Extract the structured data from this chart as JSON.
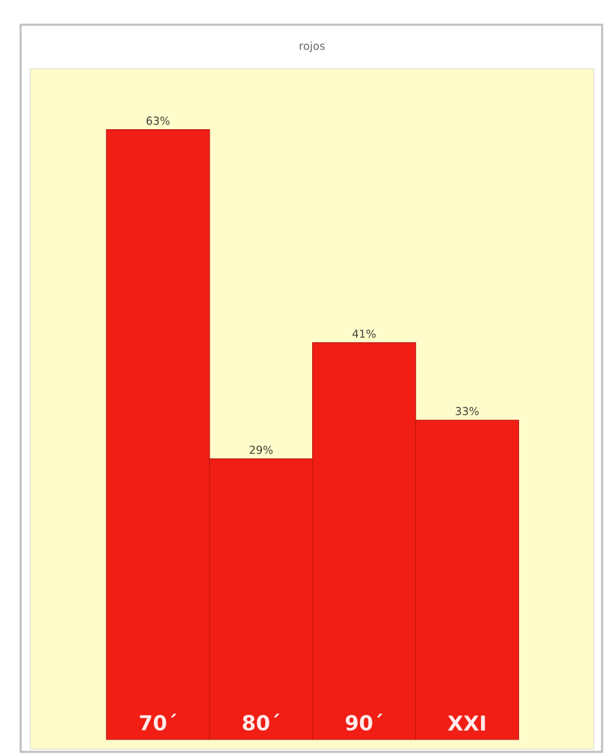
{
  "chart_data": {
    "type": "bar",
    "title": "rojos",
    "categories": [
      "70´",
      "80´",
      "90´",
      "XXI"
    ],
    "values": [
      63,
      29,
      41,
      33
    ],
    "value_labels": [
      "63%",
      "29%",
      "41%",
      "33%"
    ],
    "color": "#f01e14"
  }
}
